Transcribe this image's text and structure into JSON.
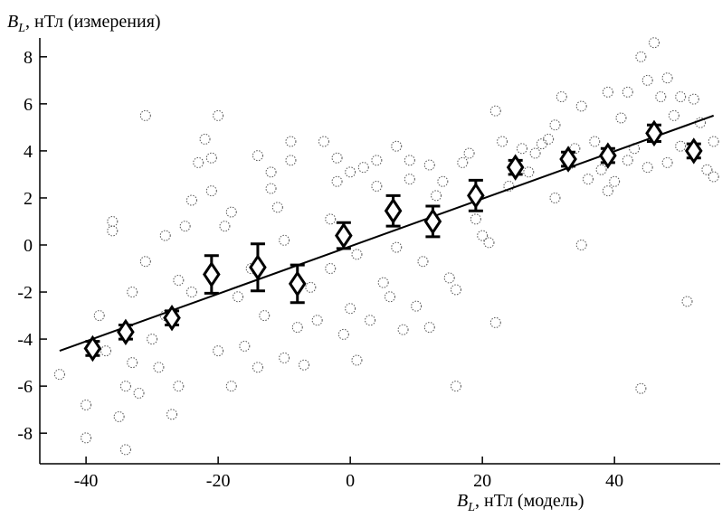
{
  "chart_data": {
    "type": "scatter",
    "y_label": {
      "symbol": "B",
      "subscript": "L",
      "text": ", нТл (измерения)"
    },
    "x_label": {
      "symbol": "B",
      "subscript": "L",
      "text": ", нТл (модель)"
    },
    "xlim": [
      -47,
      56
    ],
    "ylim": [
      -9.3,
      8.8
    ],
    "xticks": [
      -40,
      -20,
      0,
      20,
      40
    ],
    "yticks": [
      -8,
      -6,
      -4,
      -2,
      0,
      2,
      4,
      6,
      8
    ],
    "color": "#555555",
    "x": [
      -44,
      -40,
      -40,
      -38,
      -37,
      -36,
      -36,
      -35,
      -34,
      -34,
      -33,
      -33,
      -32,
      -31,
      -31,
      -30,
      -29,
      -28,
      -28,
      -27,
      -26,
      -26,
      -25,
      -24,
      -24,
      -23,
      -22,
      -21,
      -21,
      -20,
      -20,
      -19,
      -18,
      -18,
      -17,
      -16,
      -15,
      -14,
      -14,
      -13,
      -12,
      -12,
      -11,
      -10,
      -10,
      -9,
      -9,
      -8,
      -7,
      -6,
      -5,
      -4,
      -3,
      -3,
      -2,
      -2,
      -1,
      0,
      0,
      1,
      1,
      2,
      3,
      4,
      4,
      5,
      6,
      7,
      7,
      8,
      9,
      9,
      10,
      11,
      12,
      12,
      13,
      14,
      15,
      16,
      16,
      17,
      18,
      19,
      20,
      21,
      22,
      22,
      23,
      24,
      26,
      27,
      28,
      29,
      30,
      31,
      31,
      32,
      33,
      34,
      35,
      35,
      36,
      37,
      38,
      39,
      39,
      40,
      41,
      42,
      42,
      43,
      44,
      44,
      45,
      45,
      46,
      47,
      48,
      48,
      49,
      50,
      50,
      51,
      52,
      53,
      54,
      55,
      55
    ],
    "values": [
      -5.5,
      -8.2,
      -6.8,
      -3,
      -4.5,
      1,
      0.6,
      -7.3,
      -8.7,
      -6,
      -5,
      -2,
      -6.3,
      -0.7,
      5.5,
      -4,
      -5.2,
      -3,
      0.4,
      -7.2,
      -6,
      -1.5,
      0.8,
      -2,
      1.9,
      3.5,
      4.5,
      2.3,
      3.7,
      5.5,
      -4.5,
      0.8,
      -6,
      1.4,
      -2.2,
      -4.3,
      -1,
      3.8,
      -5.2,
      -3,
      3.1,
      2.4,
      1.6,
      -4.8,
      0.2,
      4.4,
      3.6,
      -3.5,
      -5.1,
      -1.8,
      -3.2,
      4.4,
      -1,
      1.1,
      3.7,
      2.7,
      -3.8,
      -2.7,
      3.1,
      -4.9,
      -0.4,
      3.3,
      -3.2,
      3.6,
      2.5,
      -1.6,
      -2.2,
      4.2,
      -0.1,
      -3.6,
      3.6,
      2.8,
      -2.6,
      -0.7,
      3.4,
      -3.5,
      2.1,
      2.7,
      -1.4,
      -6,
      -1.9,
      3.5,
      3.9,
      1.1,
      0.4,
      0.1,
      5.7,
      -3.3,
      4.4,
      2.5,
      4.1,
      3.1,
      3.9,
      4.3,
      4.5,
      5.1,
      2,
      6.3,
      3.4,
      4.1,
      5.9,
      0,
      2.8,
      4.4,
      3.2,
      6.5,
      2.3,
      2.7,
      5.4,
      6.5,
      3.6,
      4.1,
      -6.1,
      8,
      7,
      3.3,
      8.6,
      6.3,
      7.1,
      3.5,
      5.5,
      6.3,
      4.2,
      -2.4,
      6.2,
      5.2,
      3.2,
      2.9,
      4.4
    ],
    "means": {
      "x": [
        -39,
        -34,
        -27,
        -21,
        -14,
        -8,
        -1,
        6.5,
        12.5,
        19,
        25,
        33,
        39,
        46,
        52
      ],
      "values": [
        -4.4,
        -3.7,
        -3.1,
        -1.25,
        -0.95,
        -1.65,
        0.4,
        1.45,
        1.0,
        2.1,
        3.3,
        3.65,
        3.8,
        4.75,
        4.0
      ],
      "errors": [
        0.3,
        0.3,
        0.3,
        0.8,
        1.0,
        0.8,
        0.55,
        0.65,
        0.65,
        0.65,
        0.3,
        0.3,
        0.3,
        0.35,
        0.3
      ]
    },
    "fit": {
      "x": [
        -44,
        55
      ],
      "values": [
        -4.5,
        5.5
      ]
    }
  }
}
